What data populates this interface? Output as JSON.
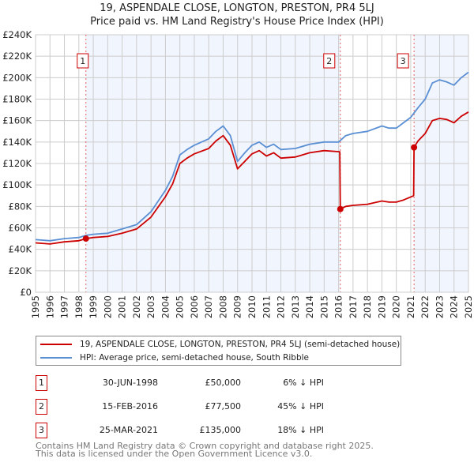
{
  "title_line1": "19, ASPENDALE CLOSE, LONGTON, PRESTON, PR4 5LJ",
  "title_line2": "Price paid vs. HM Land Registry's House Price Index (HPI)",
  "chart_data": {
    "type": "line",
    "ylim": [
      0,
      240000
    ],
    "xlim": [
      1995,
      2025
    ],
    "yticks": [
      0,
      20000,
      40000,
      60000,
      80000,
      100000,
      120000,
      140000,
      160000,
      180000,
      200000,
      220000,
      240000
    ],
    "ytick_labels": [
      "£0",
      "£20K",
      "£40K",
      "£60K",
      "£80K",
      "£100K",
      "£120K",
      "£140K",
      "£160K",
      "£180K",
      "£200K",
      "£220K",
      "£240K"
    ],
    "xtick_labels": [
      "1995",
      "1996",
      "1997",
      "1998",
      "1999",
      "2000",
      "2001",
      "2002",
      "2003",
      "2004",
      "2005",
      "2006",
      "2007",
      "2008",
      "2009",
      "2010",
      "2011",
      "2012",
      "2013",
      "2014",
      "2015",
      "2016",
      "2017",
      "2018",
      "2019",
      "2020",
      "2021",
      "2022",
      "2023",
      "2024",
      "2025"
    ],
    "grid": true,
    "series": [
      {
        "name": "19, ASPENDALE CLOSE, LONGTON, PRESTON, PR4 5LJ (semi-detached house)",
        "color": "#cc0000",
        "x": [
          1995,
          1996,
          1997,
          1998,
          1998.5,
          1999,
          2000,
          2001,
          2002,
          2003,
          2004,
          2004.5,
          2005,
          2005.5,
          2006,
          2007,
          2007.5,
          2008,
          2008.5,
          2009,
          2009.5,
          2010,
          2010.5,
          2011,
          2011.5,
          2012,
          2013,
          2014,
          2015,
          2016.08,
          2016.12,
          2016.5,
          2017,
          2018,
          2019,
          2019.5,
          2020,
          2020.5,
          2021.2,
          2021.23,
          2021.5,
          2022,
          2022.5,
          2023,
          2023.5,
          2024,
          2024.5,
          2025
        ],
        "y": [
          46000,
          45000,
          47000,
          48000,
          50000,
          51000,
          52000,
          55000,
          59000,
          70000,
          89000,
          101000,
          120000,
          125000,
          129000,
          134000,
          141000,
          146000,
          137000,
          115000,
          122000,
          129000,
          132000,
          127000,
          130000,
          125000,
          126000,
          130000,
          132000,
          131000,
          77500,
          80000,
          81000,
          82000,
          85000,
          84000,
          84000,
          86000,
          90000,
          135000,
          141000,
          148000,
          160000,
          162000,
          161000,
          158000,
          164000,
          168000
        ]
      },
      {
        "name": "HPI: Average price, semi-detached house, South Ribble",
        "color": "#5b8fd4",
        "x": [
          1995,
          1996,
          1997,
          1998,
          1998.5,
          1999,
          2000,
          2001,
          2002,
          2003,
          2004,
          2004.5,
          2005,
          2005.5,
          2006,
          2007,
          2007.5,
          2008,
          2008.5,
          2009,
          2009.5,
          2010,
          2010.5,
          2011,
          2011.5,
          2012,
          2013,
          2014,
          2015,
          2016,
          2016.5,
          2017,
          2018,
          2019,
          2019.5,
          2020,
          2020.5,
          2021,
          2021.5,
          2022,
          2022.5,
          2023,
          2023.5,
          2024,
          2024.5,
          2025
        ],
        "y": [
          49000,
          48000,
          50000,
          51000,
          53000,
          54000,
          55000,
          59000,
          63000,
          75000,
          95000,
          108000,
          128000,
          133000,
          137000,
          143000,
          150000,
          155000,
          146000,
          122000,
          130000,
          137000,
          140000,
          135000,
          138000,
          133000,
          134000,
          138000,
          140000,
          140000,
          146000,
          148000,
          150000,
          155000,
          153000,
          153000,
          158000,
          163000,
          172000,
          180000,
          195000,
          198000,
          196000,
          193000,
          200000,
          205000
        ]
      }
    ],
    "sales": [
      {
        "label": "1",
        "x": 1998.49,
        "y": 50000,
        "date": "30-JUN-1998",
        "price": "£50,000",
        "hpi": "6% ↓ HPI"
      },
      {
        "label": "2",
        "x": 2016.12,
        "y": 77500,
        "date": "15-FEB-2016",
        "price": "£77,500",
        "hpi": "45% ↓ HPI"
      },
      {
        "label": "3",
        "x": 2021.23,
        "y": 135000,
        "date": "25-MAR-2021",
        "price": "£135,000",
        "hpi": "18% ↓ HPI"
      }
    ]
  },
  "legend": {
    "red": "19, ASPENDALE CLOSE, LONGTON, PRESTON, PR4 5LJ (semi-detached house)",
    "blue": "HPI: Average price, semi-detached house, South Ribble"
  },
  "footer_line1": "Contains HM Land Registry data © Crown copyright and database right 2025.",
  "footer_line2": "This data is licensed under the Open Government Licence v3.0."
}
